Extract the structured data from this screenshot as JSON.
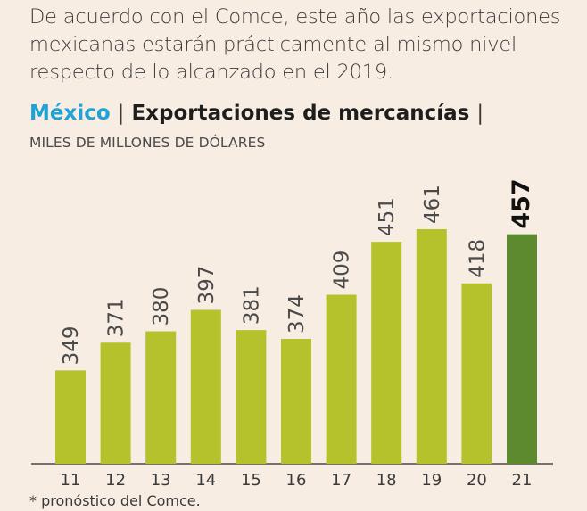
{
  "intro_text": "De acuerdo con el Comce, este año las exportaciones mexicanas estarán prácticamente al mismo nivel respecto de lo alcanzado en el 2019.",
  "heading": {
    "country": "México",
    "separator": "|",
    "title": "Exportaciones de mercancías",
    "trailing_separator": "|"
  },
  "units": "MILES DE MILLONES DE DÓLARES",
  "footnote": "* pronóstico del Comce.",
  "colors": {
    "bar": "#b5c22b",
    "highlight_bar": "#5e8a2f",
    "background": "#f8ede3",
    "country": "#1fa3d6"
  },
  "chart_data": {
    "type": "bar",
    "categories": [
      "11",
      "12",
      "13",
      "14",
      "15",
      "16",
      "17",
      "18",
      "19",
      "20",
      "21"
    ],
    "values": [
      349,
      371,
      380,
      397,
      381,
      374,
      409,
      451,
      461,
      418,
      457
    ],
    "data_labels": [
      "349",
      "371",
      "380",
      "397",
      "381",
      "374",
      "409",
      "451",
      "461",
      "418",
      "457"
    ],
    "highlight_index": 10,
    "ylim": [
      300,
      480
    ],
    "grid": false,
    "legend": "none"
  }
}
